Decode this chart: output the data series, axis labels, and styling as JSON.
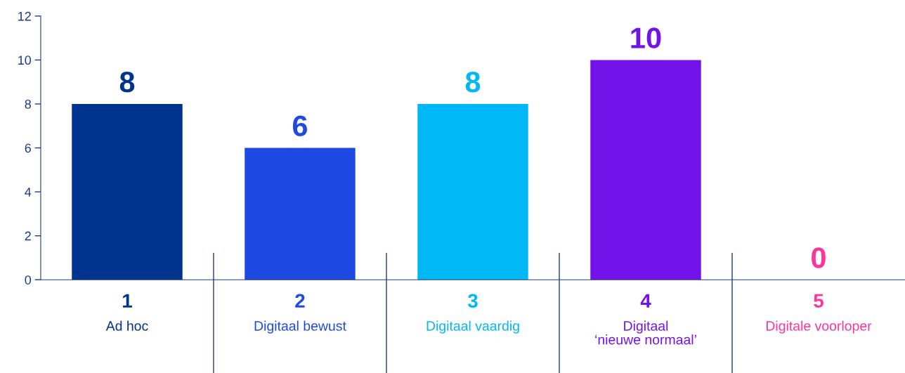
{
  "chart_data": {
    "type": "bar",
    "categories": [
      "1\nAd hoc",
      "2\nDigitaal bewust",
      "3\nDigitaal vaardig",
      "4\nDigitaal\n‘nieuwe normaal’",
      "5\nDigitale voorloper"
    ],
    "values": [
      8,
      6,
      8,
      10,
      0
    ],
    "colors": [
      "#00338d",
      "#1e49e2",
      "#00b8f5",
      "#7213ea",
      "#fd349c"
    ],
    "ylim": [
      0,
      12
    ],
    "yticks": [
      0,
      2,
      4,
      6,
      8,
      10,
      12
    ],
    "data_labels": true,
    "grid": false
  }
}
